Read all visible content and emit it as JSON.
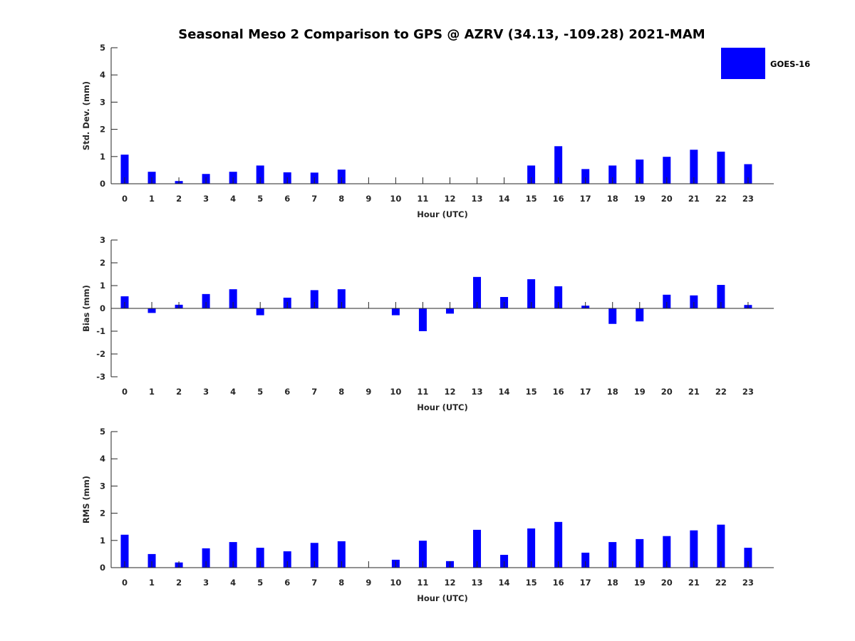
{
  "chart_data": {
    "title": "Seasonal Meso 2 Comparison to GPS @ AZRV (34.13, -109.28) 2021-MAM",
    "legend": {
      "label": "GOES-16",
      "color": "#0000ff",
      "position": "top-right"
    },
    "panels": [
      {
        "type": "bar",
        "ylabel": "Std. Dev. (mm)",
        "xlabel": "Hour (UTC)",
        "ylim": [
          0,
          5
        ],
        "yticks": [
          "0",
          "1",
          "2",
          "3",
          "4",
          "5"
        ],
        "categories": [
          "0",
          "1",
          "2",
          "3",
          "4",
          "5",
          "6",
          "7",
          "8",
          "9",
          "10",
          "11",
          "12",
          "13",
          "14",
          "15",
          "16",
          "17",
          "18",
          "19",
          "20",
          "21",
          "22",
          "23"
        ],
        "values": [
          1.07,
          0.44,
          0.1,
          0.36,
          0.44,
          0.67,
          0.42,
          0.41,
          0.52,
          0,
          0,
          0,
          0,
          0,
          0,
          0.67,
          1.38,
          0.54,
          0.67,
          0.89,
          0.99,
          1.25,
          1.18,
          0.72
        ]
      },
      {
        "type": "bar",
        "ylabel": "Bias (mm)",
        "xlabel": "Hour (UTC)",
        "ylim": [
          -3,
          3
        ],
        "yticks": [
          "-3",
          "-2",
          "-1",
          "0",
          "1",
          "2",
          "3"
        ],
        "categories": [
          "0",
          "1",
          "2",
          "3",
          "4",
          "5",
          "6",
          "7",
          "8",
          "9",
          "10",
          "11",
          "12",
          "13",
          "14",
          "15",
          "16",
          "17",
          "18",
          "19",
          "20",
          "21",
          "22",
          "23"
        ],
        "values": [
          0.53,
          -0.2,
          0.16,
          0.63,
          0.84,
          -0.3,
          0.47,
          0.8,
          0.84,
          0,
          -0.3,
          -1.0,
          -0.23,
          1.38,
          0.5,
          1.28,
          0.97,
          0.12,
          -0.68,
          -0.57,
          0.6,
          0.57,
          1.03,
          0.15
        ]
      },
      {
        "type": "bar",
        "ylabel": "RMS (mm)",
        "xlabel": "Hour (UTC)",
        "ylim": [
          0,
          5
        ],
        "yticks": [
          "0",
          "1",
          "2",
          "3",
          "4",
          "5"
        ],
        "categories": [
          "0",
          "1",
          "2",
          "3",
          "4",
          "5",
          "6",
          "7",
          "8",
          "9",
          "10",
          "11",
          "12",
          "13",
          "14",
          "15",
          "16",
          "17",
          "18",
          "19",
          "20",
          "21",
          "22",
          "23"
        ],
        "values": [
          1.21,
          0.5,
          0.19,
          0.71,
          0.94,
          0.73,
          0.6,
          0.91,
          0.97,
          0,
          0.29,
          0.99,
          0.24,
          1.39,
          0.47,
          1.44,
          1.68,
          0.55,
          0.94,
          1.05,
          1.16,
          1.37,
          1.58,
          0.73
        ]
      }
    ]
  }
}
